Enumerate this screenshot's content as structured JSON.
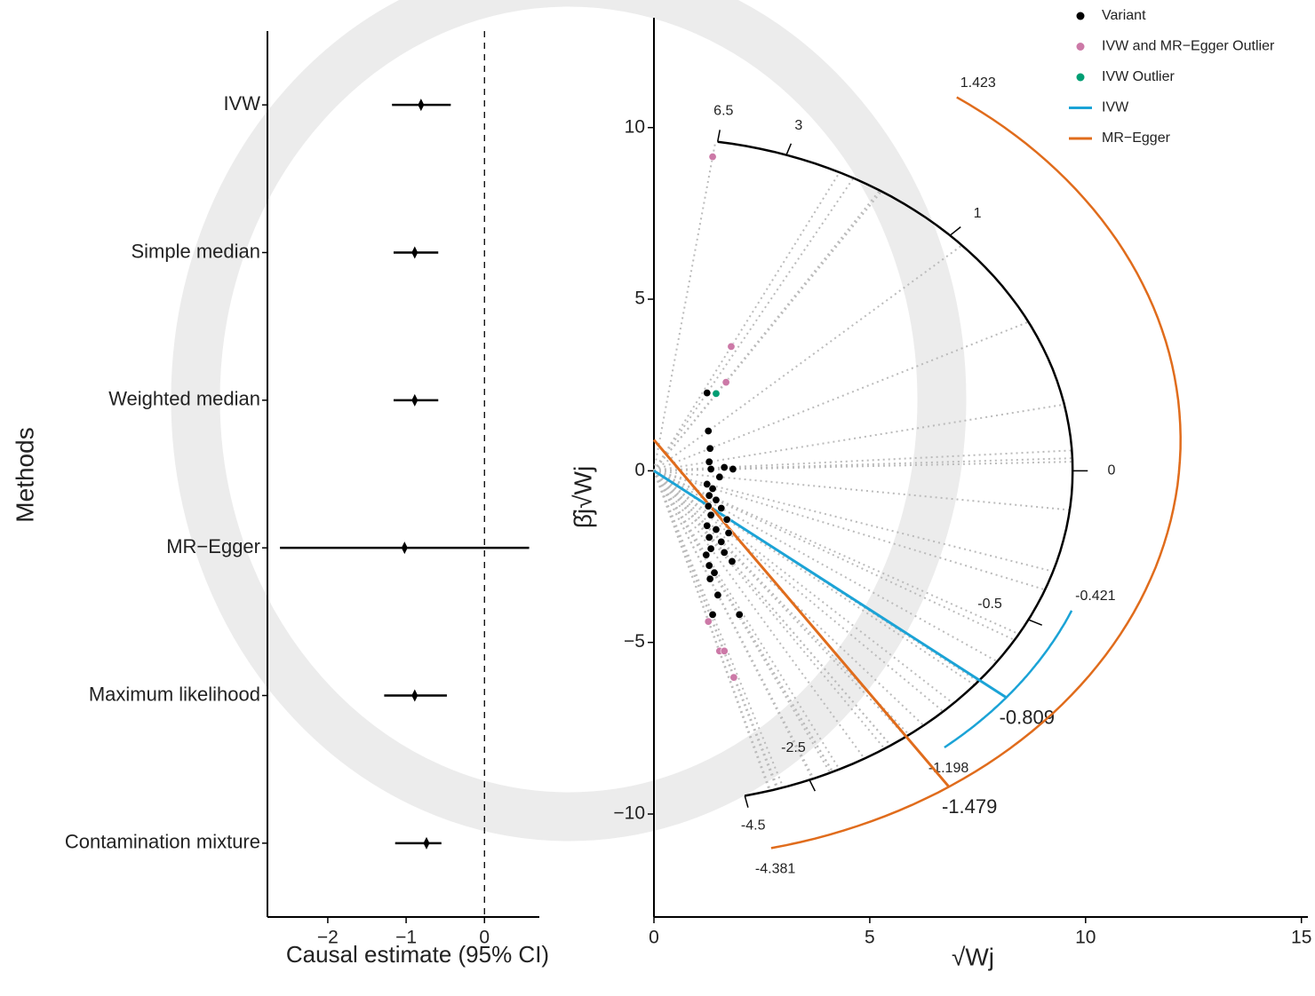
{
  "chart_data": [
    {
      "type": "forest",
      "x_label": "Causal estimate (95% CI)",
      "y_label": "Methods",
      "categories": [
        "IVW",
        "Simple median",
        "Weighted median",
        "MR−Egger",
        "Maximum likelihood",
        "Contamination mixture"
      ],
      "values": [
        -0.81,
        -0.89,
        -0.89,
        -1.02,
        -0.89,
        -0.74
      ],
      "lower": [
        -1.18,
        -1.16,
        -1.16,
        -2.61,
        -1.28,
        -1.14
      ],
      "upper": [
        -0.43,
        -0.59,
        -0.59,
        0.57,
        -0.48,
        -0.55
      ],
      "color": "#000000",
      "ref_line": 0,
      "xlim": [
        -2.77,
        0.7
      ],
      "xticks": [
        {
          "value": -2,
          "label": "−2"
        },
        {
          "value": -1,
          "label": "−1"
        },
        0
      ]
    },
    {
      "type": "radial",
      "x_label": "√Wj",
      "y_label": "β̂j√Wj",
      "xlim": [
        0,
        15.15
      ],
      "ylim": [
        -13,
        13.2
      ],
      "xticks": [
        0,
        5,
        10,
        15
      ],
      "yticks": [
        {
          "value": -10,
          "label": "−10"
        },
        {
          "value": -5,
          "label": "−5"
        },
        0,
        5,
        10
      ],
      "arc_radius": 9.7,
      "arc_ticks": [
        6.5,
        3,
        1,
        0,
        -0.5,
        -2.5,
        -4.5
      ],
      "series": [
        {
          "name": "Variant",
          "color": "#000000",
          "x": [
            1.23,
            1.26,
            1.3,
            1.28,
            1.32,
            1.63,
            1.83,
            1.52,
            1.23,
            1.36,
            1.28,
            1.44,
            1.26,
            1.56,
            1.32,
            1.69,
            1.23,
            1.44,
            1.73,
            1.28,
            1.56,
            1.32,
            1.63,
            1.81,
            1.28,
            1.4,
            1.3,
            1.48,
            1.36,
            1.98,
            1.21
          ],
          "y": [
            2.27,
            1.16,
            0.65,
            0.26,
            0.05,
            0.1,
            0.05,
            -0.18,
            -0.39,
            -0.52,
            -0.72,
            -0.85,
            -1.03,
            -1.09,
            -1.29,
            -1.42,
            -1.6,
            -1.71,
            -1.81,
            -1.94,
            -2.07,
            -2.27,
            -2.38,
            -2.64,
            -2.76,
            -2.97,
            -3.15,
            -3.62,
            -4.19,
            -4.19,
            -2.45
          ]
        },
        {
          "name": "IVW and MR−Egger Outlier",
          "color": "#cc79a7",
          "x": [
            1.36,
            1.79,
            1.67,
            1.26,
            1.52,
            1.63,
            1.85
          ],
          "y": [
            9.15,
            3.62,
            2.58,
            -4.39,
            -5.25,
            -5.25,
            -6.02
          ]
        },
        {
          "name": "IVW Outlier",
          "color": "#009e73",
          "x": [
            1.44
          ],
          "y": [
            2.25
          ]
        }
      ],
      "fits": [
        {
          "name": "IVW",
          "color": "#1ba3d6",
          "slope": -0.809,
          "intercept": 0,
          "radius": 10.5,
          "arc_range": [
            -0.421,
            -1.198
          ]
        },
        {
          "name": "MR−Egger",
          "color": "#e06c1c",
          "slope": -1.479,
          "intercept": 0.9,
          "radius": 12.2,
          "arc_range": [
            1.423,
            -4.381
          ]
        }
      ]
    }
  ]
}
